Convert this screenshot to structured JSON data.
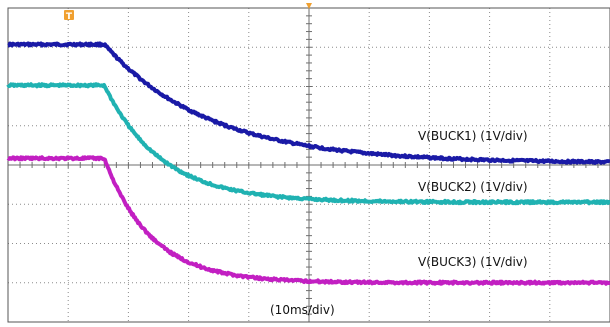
{
  "chart_data": {
    "type": "line",
    "title": "",
    "xlabel": "(10ms/div)",
    "ylabel": "",
    "x_divisions": 10,
    "y_divisions": 8,
    "trigger_marker": "T",
    "colors": {
      "buck1": "#1a1aa6",
      "buck2": "#20b2b2",
      "buck3": "#c21fc2",
      "grid": "#8c8c8c"
    },
    "series": [
      {
        "name": "V(BUCK1) (1V/div)",
        "color": "#1a1aa6",
        "level_div": 7.07,
        "final_div": 4.05,
        "tau_div": 1.75
      },
      {
        "name": "V(BUCK2) (1V/div)",
        "color": "#20b2b2",
        "level_div": 6.03,
        "final_div": 3.05,
        "tau_div": 0.95
      },
      {
        "name": "V(BUCK3) (1V/div)",
        "color": "#c21fc2",
        "level_div": 4.17,
        "final_div": 1.0,
        "tau_div": 0.78
      }
    ],
    "drop_start_div": 1.6,
    "grid": true
  }
}
